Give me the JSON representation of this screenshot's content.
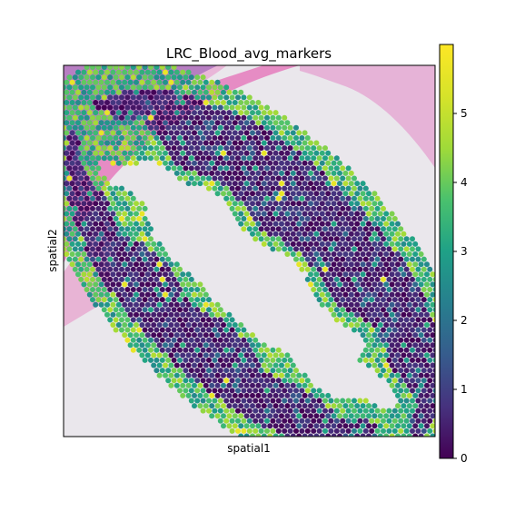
{
  "chart_data": {
    "type": "scatter",
    "title": "LRC_Blood_avg_markers",
    "xlabel": "spatial1",
    "ylabel": "spatial2",
    "colorbar": {
      "colormap": "viridis",
      "range": [
        0,
        6
      ],
      "ticks": [
        0,
        1,
        2,
        3,
        4,
        5
      ],
      "tick_labels": [
        "0",
        "1",
        "2",
        "3",
        "4",
        "5"
      ]
    },
    "background": "H&E tissue image",
    "colors": {
      "low": "#440154",
      "mid": "#21908d",
      "high": "#fde725",
      "tissue_pink": "#e98fc2",
      "tissue_purple": "#9b5fb0"
    }
  }
}
